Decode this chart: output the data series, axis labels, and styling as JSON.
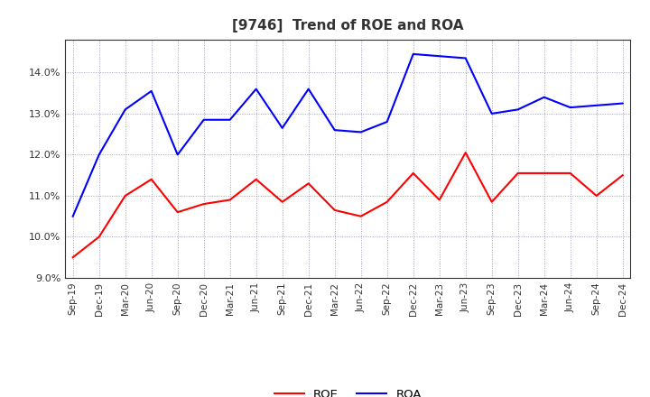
{
  "title": "[9746]  Trend of ROE and ROA",
  "labels": [
    "Sep-19",
    "Dec-19",
    "Mar-20",
    "Jun-20",
    "Sep-20",
    "Dec-20",
    "Mar-21",
    "Jun-21",
    "Sep-21",
    "Dec-21",
    "Mar-22",
    "Jun-22",
    "Sep-22",
    "Dec-22",
    "Mar-23",
    "Jun-23",
    "Sep-23",
    "Dec-23",
    "Mar-24",
    "Jun-24",
    "Sep-24",
    "Dec-24"
  ],
  "roe": [
    9.5,
    10.0,
    11.0,
    11.4,
    10.6,
    10.8,
    10.9,
    11.4,
    10.85,
    11.3,
    10.65,
    10.5,
    10.85,
    11.55,
    10.9,
    12.05,
    10.85,
    11.55,
    11.55,
    11.55,
    11.0,
    11.5
  ],
  "roa": [
    10.5,
    12.0,
    13.1,
    13.55,
    12.0,
    12.85,
    12.85,
    13.6,
    12.65,
    13.6,
    12.6,
    12.55,
    12.8,
    14.45,
    14.4,
    14.35,
    13.0,
    13.1,
    13.4,
    13.15,
    13.2,
    13.25
  ],
  "roe_color": "#ff0000",
  "roa_color": "#0000ff",
  "ylim_min": 9.0,
  "ylim_max": 14.8,
  "yticks": [
    9.0,
    10.0,
    11.0,
    12.0,
    13.0,
    14.0
  ],
  "bg_color": "#ffffff",
  "grid_color": "#8888aa",
  "title_fontsize": 11,
  "title_color": "#333333"
}
